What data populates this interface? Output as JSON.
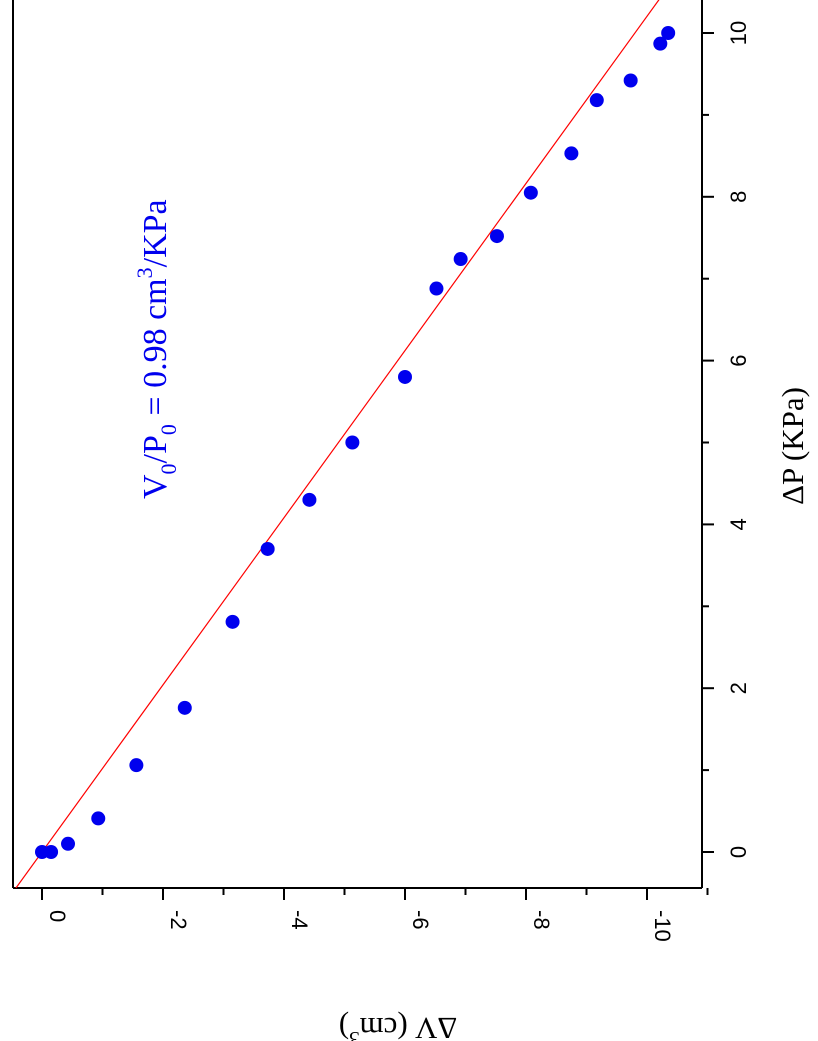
{
  "chart_data": {
    "type": "scatter",
    "orientation": "rotated 90 degrees (landscape figure viewed in portrait)",
    "xlabel": "ΔV (cm",
    "xlabel_sup": "3",
    "xlabel_tail": ")",
    "ylabel": "ΔP (KPa)",
    "xlim": [
      0.5,
      -11.0
    ],
    "ylim": [
      -0.5,
      10.5
    ],
    "x_ticks": [
      0,
      -2,
      -4,
      -6,
      -8,
      -10
    ],
    "x_tick_labels": [
      "0",
      "-2",
      "-4",
      "-6",
      "-8",
      "-10"
    ],
    "y_ticks": [
      0,
      2,
      4,
      6,
      8,
      10
    ],
    "y_tick_labels": [
      "0",
      "2",
      "4",
      "6",
      "8",
      "10"
    ],
    "annotation": {
      "prefix": "V",
      "sub1": "0",
      "mid": "/P",
      "sub2": "0",
      "eq": " = 0.98 cm",
      "sup": "3",
      "tail": "/KPa"
    },
    "fit": {
      "slope": -0.98,
      "intercept": 0.0,
      "color": "#ff0000"
    },
    "marker_color": "#0000ee",
    "points": [
      {
        "x": 0.0,
        "y": 0.0
      },
      {
        "x": -0.15,
        "y": 0.0
      },
      {
        "x": -0.43,
        "y": 0.1
      },
      {
        "x": -0.93,
        "y": 0.41
      },
      {
        "x": -1.56,
        "y": 1.06
      },
      {
        "x": -2.36,
        "y": 1.76
      },
      {
        "x": -3.15,
        "y": 2.81
      },
      {
        "x": -3.73,
        "y": 3.7
      },
      {
        "x": -4.42,
        "y": 4.3
      },
      {
        "x": -5.13,
        "y": 5.0
      },
      {
        "x": -6.0,
        "y": 5.8
      },
      {
        "x": -6.52,
        "y": 6.88
      },
      {
        "x": -6.92,
        "y": 7.24
      },
      {
        "x": -7.52,
        "y": 7.52
      },
      {
        "x": -8.08,
        "y": 8.05
      },
      {
        "x": -8.75,
        "y": 8.53
      },
      {
        "x": -9.17,
        "y": 9.18
      },
      {
        "x": -9.73,
        "y": 9.42
      },
      {
        "x": -10.22,
        "y": 9.87
      },
      {
        "x": -10.35,
        "y": 10.0
      }
    ]
  }
}
